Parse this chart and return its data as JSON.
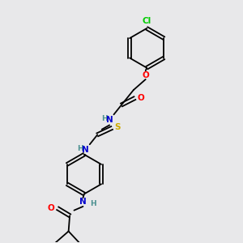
{
  "bg_color": "#e8e8ea",
  "atom_colors": {
    "C": "#000000",
    "N": "#0000cc",
    "O": "#ff0000",
    "S": "#ccaa00",
    "Cl": "#00cc00",
    "H": "#4a9090"
  },
  "lw": 1.3,
  "fs": 7.5,
  "fs_small": 6.5
}
